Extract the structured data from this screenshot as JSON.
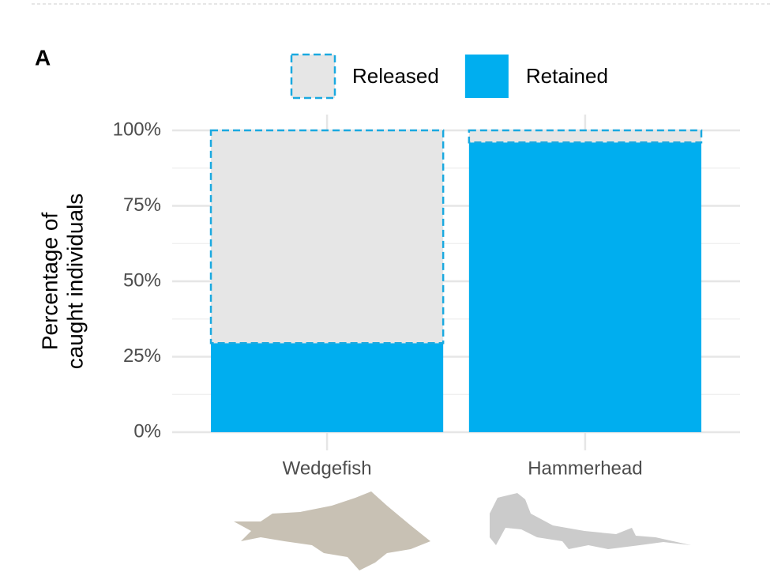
{
  "chart_data": {
    "type": "stacked-bar",
    "panel_label": "A",
    "ylabel": [
      "Percentage of",
      "caught individuals"
    ],
    "categories": [
      "Wedgefish",
      "Hammerhead"
    ],
    "series": [
      {
        "name": "Retained",
        "color": "#00aeef",
        "values": [
          29.5,
          96
        ]
      },
      {
        "name": "Released",
        "color": "#e6e6e6",
        "edge_color": "#1aa9e0",
        "values": [
          70.5,
          4
        ]
      }
    ],
    "legend_order": [
      1,
      0
    ],
    "ylim": [
      0,
      100
    ],
    "yticks": [
      {
        "value": 0,
        "label": "0%"
      },
      {
        "value": 25,
        "label": "25%"
      },
      {
        "value": 50,
        "label": "50%"
      },
      {
        "value": 75,
        "label": "75%"
      },
      {
        "value": 100,
        "label": "100%"
      }
    ],
    "y_minor_ticks": [
      12.5,
      37.5,
      62.5,
      87.5
    ],
    "grid": true
  }
}
